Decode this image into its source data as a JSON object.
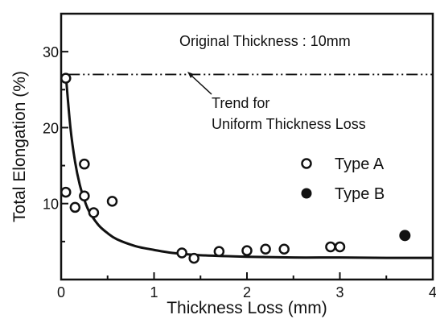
{
  "chart_data": {
    "type": "scatter",
    "xlabel": "Thickness Loss (mm)",
    "ylabel": "Total Elongation (%)",
    "xlim": [
      0,
      4
    ],
    "ylim": [
      0,
      35
    ],
    "x_ticks": [
      "0",
      "1",
      "2",
      "3",
      "4"
    ],
    "y_ticks": [
      "10",
      "20",
      "30"
    ],
    "grid": false,
    "legend_placement": "right",
    "annotations": {
      "original_thickness": "Original Thickness : 10mm",
      "trend_line1": "Trend for",
      "trend_line2": "Uniform Thickness Loss"
    },
    "series": [
      {
        "name": "Type A",
        "marker": "open-circle",
        "x": [
          0.05,
          0.05,
          0.15,
          0.25,
          0.25,
          0.35,
          0.55,
          1.3,
          1.43,
          1.7,
          2.0,
          2.2,
          2.4,
          2.9,
          3.0
        ],
        "y": [
          11.5,
          26.5,
          9.5,
          15.2,
          11.0,
          8.8,
          10.3,
          3.5,
          2.8,
          3.7,
          3.8,
          4.0,
          4.0,
          4.3,
          4.3
        ]
      },
      {
        "name": "Type B",
        "marker": "filled-circle",
        "x": [
          3.7
        ],
        "y": [
          5.8
        ]
      }
    ],
    "trend_curve": {
      "style": "solid",
      "x": [
        0.05,
        0.1,
        0.15,
        0.2,
        0.25,
        0.3,
        0.4,
        0.5,
        0.6,
        0.8,
        1.0,
        1.2,
        1.5,
        2.0,
        2.5,
        3.0,
        3.5,
        4.0
      ],
      "y": [
        27.0,
        20.0,
        15.5,
        12.5,
        10.5,
        9.0,
        7.2,
        6.1,
        5.3,
        4.4,
        3.9,
        3.5,
        3.2,
        3.0,
        2.9,
        2.9,
        2.85,
        2.85
      ]
    },
    "reference_line": {
      "style": "dash-dot",
      "y": 27
    },
    "colors": {
      "ink": "#111111",
      "background": "#ffffff"
    }
  }
}
